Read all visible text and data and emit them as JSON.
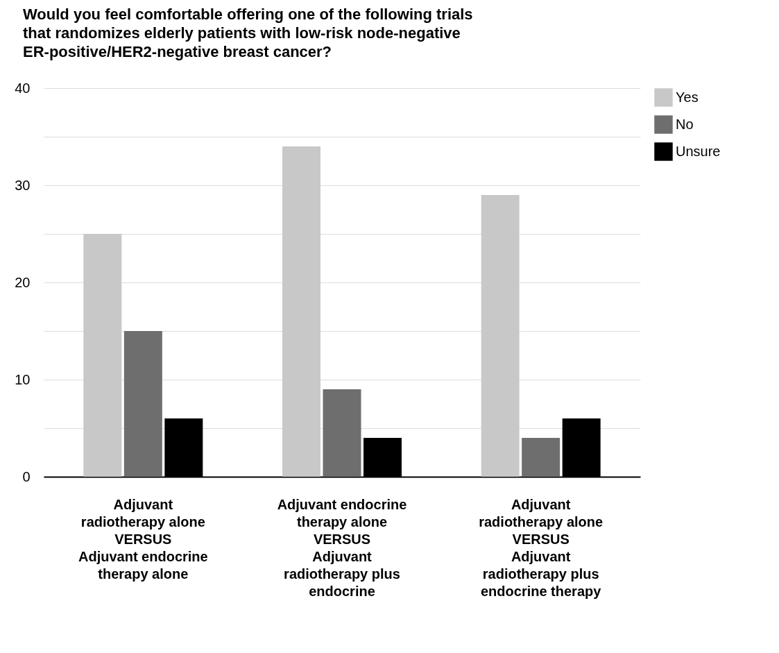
{
  "chart_data": {
    "type": "bar",
    "title": "Would you feel comfortable offering one of the following trials\nthat randomizes elderly patients with low-risk node-negative\nER-positive/HER2-negative breast cancer?",
    "categories": [
      "Adjuvant\nradiotherapy alone\nVERSUS\nAdjuvant endocrine\ntherapy alone",
      "Adjuvant endocrine\ntherapy alone\nVERSUS\nAdjuvant\nradiotherapy plus\nendocrine",
      "Adjuvant\nradiotherapy alone\nVERSUS\nAdjuvant\nradiotherapy plus\nendocrine therapy"
    ],
    "series": [
      {
        "name": "Yes",
        "color": "#c8c8c8",
        "values": [
          25,
          34,
          29
        ]
      },
      {
        "name": "No",
        "color": "#6e6e6e",
        "values": [
          15,
          9,
          4
        ]
      },
      {
        "name": "Unsure",
        "color": "#000000",
        "values": [
          6,
          4,
          6
        ]
      }
    ],
    "ylim": [
      0,
      40
    ],
    "yticks": [
      0,
      {
        "value": 5,
        "label": null
      },
      10,
      {
        "value": 15,
        "label": null
      },
      20,
      {
        "value": 25,
        "label": null
      },
      30,
      {
        "value": 35,
        "label": null
      },
      40
    ],
    "grid": "y",
    "legend": "top right"
  }
}
